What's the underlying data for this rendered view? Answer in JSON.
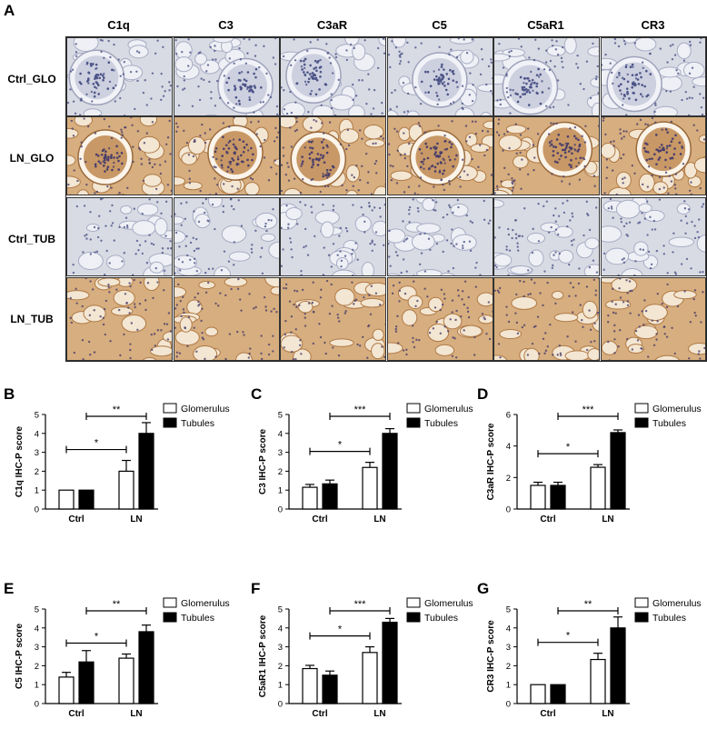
{
  "figure": {
    "panel_a": {
      "letter": "A",
      "columns": [
        "C1q",
        "C3",
        "C3aR",
        "C5",
        "C5aR1",
        "CR3"
      ],
      "rows": [
        {
          "label": "Ctrl_GLO",
          "stain": "control",
          "structure": "glomerulus"
        },
        {
          "label": "LN_GLO",
          "stain": "positive",
          "structure": "glomerulus"
        },
        {
          "label": "Ctrl_TUB",
          "stain": "control",
          "structure": "tubules"
        },
        {
          "label": "LN_TUB",
          "stain": "positive",
          "structure": "tubules"
        }
      ],
      "stain_colors": {
        "control_bg": "#d9dbe4",
        "positive_bg": "#d7ae7f",
        "nuclei": "#4c5488",
        "positive_nuclei": "#4b3f6a"
      }
    },
    "colors": {
      "glomerulus_fill": "#ffffff",
      "tubules_fill": "#000000",
      "axis": "#000000"
    }
  },
  "chart_data": [
    {
      "panel": "B",
      "type": "bar",
      "ylabel": "C1q IHC-P score",
      "categories": [
        "Ctrl",
        "LN"
      ],
      "ylim": [
        0,
        5
      ],
      "yticks": [
        0,
        1,
        2,
        3,
        4,
        5
      ],
      "series": [
        {
          "name": "Glomerulus",
          "values": [
            1.0,
            2.0
          ],
          "errors": [
            0,
            0.57
          ]
        },
        {
          "name": "Tubules",
          "values": [
            1.0,
            4.0
          ],
          "errors": [
            0,
            0.57
          ]
        }
      ],
      "significance": [
        {
          "compare": "Glomerulus Ctrl vs LN",
          "label": "*"
        },
        {
          "compare": "Tubules Ctrl vs LN",
          "label": "**"
        }
      ],
      "legend": "top-right"
    },
    {
      "panel": "C",
      "type": "bar",
      "ylabel": "C3 IHC-P score",
      "categories": [
        "Ctrl",
        "LN"
      ],
      "ylim": [
        0,
        5
      ],
      "yticks": [
        0,
        1,
        2,
        3,
        4,
        5
      ],
      "series": [
        {
          "name": "Glomerulus",
          "values": [
            1.15,
            2.2
          ],
          "errors": [
            0.15,
            0.27
          ]
        },
        {
          "name": "Tubules",
          "values": [
            1.33,
            4.0
          ],
          "errors": [
            0.2,
            0.25
          ]
        }
      ],
      "significance": [
        {
          "compare": "Glomerulus Ctrl vs LN",
          "label": "*"
        },
        {
          "compare": "Tubules Ctrl vs LN",
          "label": "***"
        }
      ],
      "legend": "top-right"
    },
    {
      "panel": "D",
      "type": "bar",
      "ylabel": "C3aR IHC-P score",
      "categories": [
        "Ctrl",
        "LN"
      ],
      "ylim": [
        0,
        6
      ],
      "yticks": [
        0,
        2,
        4,
        6
      ],
      "series": [
        {
          "name": "Glomerulus",
          "values": [
            1.5,
            2.65
          ],
          "errors": [
            0.2,
            0.17
          ]
        },
        {
          "name": "Tubules",
          "values": [
            1.5,
            4.85
          ],
          "errors": [
            0.2,
            0.17
          ]
        }
      ],
      "significance": [
        {
          "compare": "Glomerulus Ctrl vs LN",
          "label": "*"
        },
        {
          "compare": "Tubules Ctrl vs LN",
          "label": "***"
        }
      ],
      "legend": "top-right"
    },
    {
      "panel": "E",
      "type": "bar",
      "ylabel": "C5 IHC-P score",
      "categories": [
        "Ctrl",
        "LN"
      ],
      "ylim": [
        0,
        5
      ],
      "yticks": [
        0,
        1,
        2,
        3,
        4,
        5
      ],
      "series": [
        {
          "name": "Glomerulus",
          "values": [
            1.4,
            2.4
          ],
          "errors": [
            0.25,
            0.22
          ]
        },
        {
          "name": "Tubules",
          "values": [
            2.2,
            3.8
          ],
          "errors": [
            0.6,
            0.35
          ]
        }
      ],
      "significance": [
        {
          "compare": "Glomerulus Ctrl vs LN",
          "label": "*"
        },
        {
          "compare": "Tubules Ctrl vs LN",
          "label": "**"
        }
      ],
      "legend": "top-right"
    },
    {
      "panel": "F",
      "type": "bar",
      "ylabel": "C5aR1 IHC-P score",
      "categories": [
        "Ctrl",
        "LN"
      ],
      "ylim": [
        0,
        5
      ],
      "yticks": [
        0,
        1,
        2,
        3,
        4,
        5
      ],
      "series": [
        {
          "name": "Glomerulus",
          "values": [
            1.85,
            2.7
          ],
          "errors": [
            0.17,
            0.3
          ]
        },
        {
          "name": "Tubules",
          "values": [
            1.5,
            4.3
          ],
          "errors": [
            0.22,
            0.2
          ]
        }
      ],
      "significance": [
        {
          "compare": "Glomerulus Ctrl vs LN",
          "label": "*"
        },
        {
          "compare": "Tubules Ctrl vs LN",
          "label": "***"
        }
      ],
      "legend": "top-right"
    },
    {
      "panel": "G",
      "type": "bar",
      "ylabel": "CR3 IHC-P score",
      "categories": [
        "Ctrl",
        "LN"
      ],
      "ylim": [
        0,
        5
      ],
      "yticks": [
        0,
        1,
        2,
        3,
        4,
        5
      ],
      "series": [
        {
          "name": "Glomerulus",
          "values": [
            1.0,
            2.33
          ],
          "errors": [
            0,
            0.33
          ]
        },
        {
          "name": "Tubules",
          "values": [
            1.0,
            4.0
          ],
          "errors": [
            0,
            0.58
          ]
        }
      ],
      "significance": [
        {
          "compare": "Glomerulus Ctrl vs LN",
          "label": "*"
        },
        {
          "compare": "Tubules Ctrl vs LN",
          "label": "**"
        }
      ],
      "legend": "top-right"
    }
  ]
}
